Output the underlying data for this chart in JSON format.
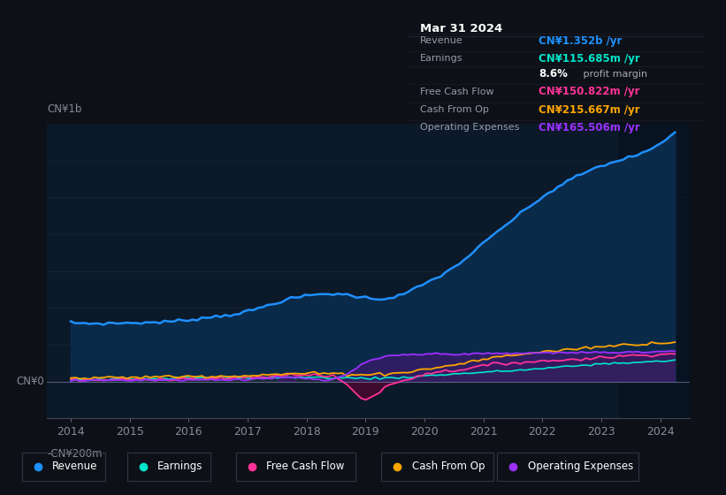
{
  "background_color": "#0d1117",
  "plot_bg_color": "#0c1929",
  "title": "Mar 31 2024",
  "ylabel_top": "CN¥1b",
  "ylabel_bottom": "-CN¥200m",
  "ylabel_zero": "CN¥0",
  "revenue_color": "#1e90ff",
  "earnings_color": "#00e5cc",
  "fcf_color": "#ff3399",
  "cashfromop_color": "#ffa500",
  "opex_color": "#9b30ff",
  "revenue_fill_color": "#0a2540",
  "legend_items": [
    {
      "label": "Revenue",
      "color": "#1e90ff"
    },
    {
      "label": "Earnings",
      "color": "#00e5cc"
    },
    {
      "label": "Free Cash Flow",
      "color": "#ff3399"
    },
    {
      "label": "Cash From Op",
      "color": "#ffa500"
    },
    {
      "label": "Operating Expenses",
      "color": "#9b30ff"
    }
  ],
  "ylim": [
    -200,
    1400
  ],
  "xlim_start": 2013.6,
  "xlim_end": 2024.5
}
